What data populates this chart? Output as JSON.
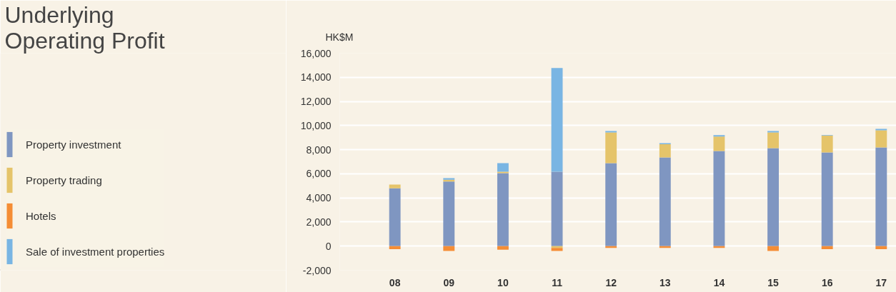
{
  "chart_data": {
    "type": "bar",
    "stacked": true,
    "title": "Underlying Operating Profit",
    "ylabel": "HK$M",
    "categories": [
      "08",
      "09",
      "10",
      "11",
      "12",
      "13",
      "14",
      "15",
      "16",
      "17"
    ],
    "series": [
      {
        "name": "Property investment",
        "color": "#7f96c1",
        "values": [
          4800,
          5350,
          6050,
          6170,
          6880,
          7360,
          7890,
          8130,
          7770,
          8190
        ]
      },
      {
        "name": "Property trading",
        "color": "#e5c46a",
        "values": [
          300,
          150,
          120,
          -150,
          2550,
          1090,
          1190,
          1300,
          1390,
          1420
        ]
      },
      {
        "name": "Hotels",
        "color": "#f58d35",
        "values": [
          -250,
          -400,
          -300,
          -250,
          -150,
          -150,
          -150,
          -400,
          -250,
          -250
        ]
      },
      {
        "name": "Sale of investment properties",
        "color": "#79b5e3",
        "values": [
          0,
          140,
          710,
          8600,
          120,
          90,
          120,
          120,
          40,
          120
        ]
      }
    ],
    "ylim": [
      -2000,
      16000
    ],
    "yticks": [
      {
        "value": -2000,
        "label": "-2,000"
      },
      0,
      {
        "value": 2000,
        "label": "2,000"
      },
      {
        "value": 4000,
        "label": "4,000"
      },
      {
        "value": 6000,
        "label": "6,000"
      },
      {
        "value": 8000,
        "label": "8,000"
      },
      {
        "value": 10000,
        "label": "10,000"
      },
      {
        "value": 12000,
        "label": "12,000"
      },
      {
        "value": 14000,
        "label": "14,000"
      },
      {
        "value": 16000,
        "label": "16,000"
      }
    ],
    "grid": "y",
    "legend": "left"
  }
}
